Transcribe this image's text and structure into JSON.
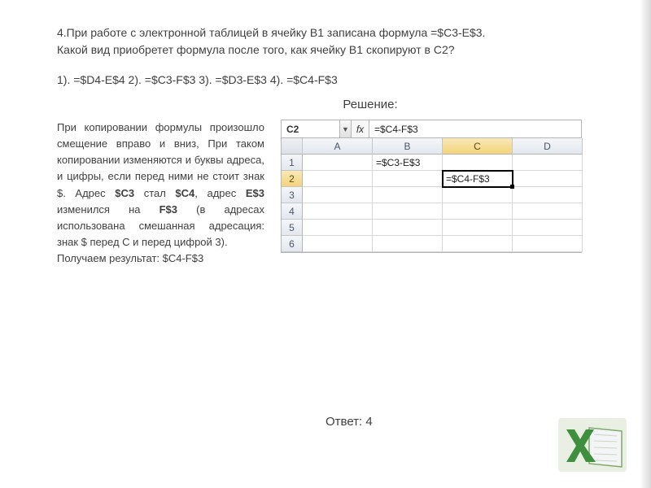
{
  "question": {
    "line1": "4.При работе с электронной таблицей в ячейку B1 записана формула =$C3-E$3.",
    "line2": "Какой вид приобретет формула после того, как  ячейку B1 скопируют в C2?"
  },
  "options": "1). =$D4-E$4   2). =$C3-F$3   3). =$D3-E$3   4). =$C4-F$3",
  "solution_title": "Решение:",
  "explanation": "При копировании формулы произошло смещение вправо и вниз, При таком копировании изменяются и буквы адреса, и цифры, если перед ними не стоит знак $. Адрес <b>$C3</b> стал <b>$C4</b>, адрес <b>E$3</b> изменился на <b>F$3</b>   (в адресах использована смешанная адресация: знак $ перед C и перед цифрой 3).<br>Получаем результат: $C4-F$3",
  "excel": {
    "namebox": "C2",
    "fx_label": "fx",
    "formula": "=$C4-F$3",
    "col_headers": [
      "A",
      "B",
      "C",
      "D"
    ],
    "row_headers": [
      "1",
      "2",
      "3",
      "4",
      "5",
      "6"
    ],
    "selected_col_index": 2,
    "selected_row_index": 1,
    "cells": {
      "B1": "=$C3-E$3",
      "C2": "=$C4-F$3"
    },
    "colors": {
      "border": "#b5b5b5",
      "header_grad_top": "#f4f6f9",
      "header_grad_bottom": "#e3e7ee",
      "sel_header_top": "#f9e8b8",
      "sel_header_bottom": "#f3d47a",
      "cell_border": "#d4d6da"
    }
  },
  "answer": "Ответ: 4",
  "logo": {
    "bg": "#e9efe3",
    "x_fill": "#3e8f3e",
    "book_fill": "#f2f4f6",
    "book_stroke": "#7fa96c"
  }
}
